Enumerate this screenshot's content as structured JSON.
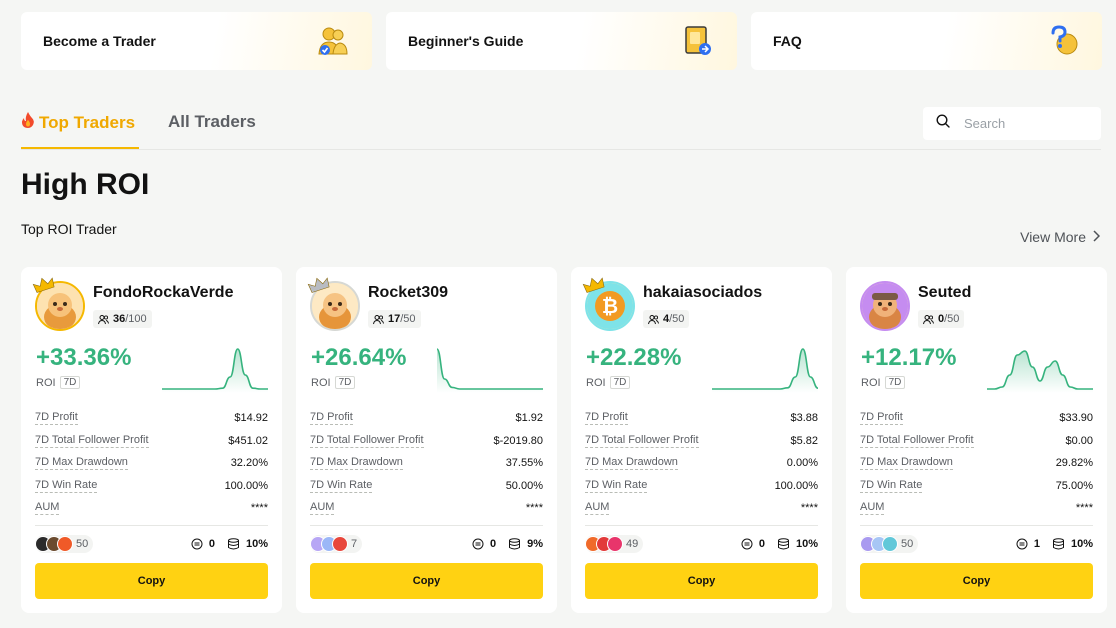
{
  "banners": [
    {
      "label": "Become a Trader",
      "icon": "trader-badge-icon"
    },
    {
      "label": "Beginner's Guide",
      "icon": "guide-book-icon"
    },
    {
      "label": "FAQ",
      "icon": "question-bulb-icon"
    }
  ],
  "tabs": {
    "top_traders": "Top Traders",
    "all_traders": "All Traders",
    "active_icon": "fire-icon"
  },
  "search": {
    "placeholder": "Search"
  },
  "section": {
    "title": "High ROI",
    "subtitle": "Top ROI Trader",
    "view_more": "View More"
  },
  "stat_labels": [
    "7D Profit",
    "7D Total Follower Profit",
    "7D Max Drawdown",
    "7D Win Rate",
    "AUM"
  ],
  "colors": {
    "accent": "#f5b800",
    "positive": "#36b37e",
    "button": "#ffd212"
  },
  "traders": [
    {
      "name": "FondoRockaVerde",
      "followers_current": "36",
      "followers_max": "/100",
      "roi": "+33.36%",
      "roi_label": "ROI",
      "roi_period": "7D",
      "stats": [
        "$14.92",
        "$451.02",
        "32.20%",
        "100.00%",
        "****"
      ],
      "copiers_count": "50",
      "comments": "0",
      "profit_share": "10%",
      "copy_label": "Copy",
      "crown": "gold",
      "sparkline": [
        0,
        0,
        0,
        0,
        0,
        0,
        0,
        0,
        0.02,
        0.3,
        1,
        0.35,
        0.02,
        0,
        0
      ]
    },
    {
      "name": "Rocket309",
      "followers_current": "17",
      "followers_max": "/50",
      "roi": "+26.64%",
      "roi_label": "ROI",
      "roi_period": "7D",
      "stats": [
        "$1.92",
        "$-2019.80",
        "37.55%",
        "50.00%",
        "****"
      ],
      "copiers_count": "7",
      "comments": "0",
      "profit_share": "9%",
      "copy_label": "Copy",
      "crown": "silver",
      "sparkline": [
        1,
        0.25,
        0.04,
        0,
        0,
        0,
        0,
        0,
        0,
        0,
        0,
        0,
        0,
        0,
        0
      ]
    },
    {
      "name": "hakaiasociados",
      "followers_current": "4",
      "followers_max": "/50",
      "roi": "+22.28%",
      "roi_label": "ROI",
      "roi_period": "7D",
      "stats": [
        "$3.88",
        "$5.82",
        "0.00%",
        "100.00%",
        "****"
      ],
      "copiers_count": "49",
      "comments": "0",
      "profit_share": "10%",
      "copy_label": "Copy",
      "crown": "gold",
      "sparkline": [
        0,
        0,
        0,
        0,
        0,
        0,
        0,
        0,
        0,
        0,
        0.03,
        0.3,
        1,
        0.3,
        0.02
      ]
    },
    {
      "name": "Seuted",
      "followers_current": "0",
      "followers_max": "/50",
      "roi": "+12.17%",
      "roi_label": "ROI",
      "roi_period": "7D",
      "stats": [
        "$33.90",
        "$0.00",
        "29.82%",
        "75.00%",
        "****"
      ],
      "copiers_count": "50",
      "comments": "1",
      "profit_share": "10%",
      "copy_label": "Copy",
      "crown": "none",
      "sparkline": [
        0,
        0,
        0.05,
        0.35,
        0.85,
        0.95,
        0.55,
        0.2,
        0.55,
        0.7,
        0.35,
        0.05,
        0,
        0,
        0
      ]
    }
  ]
}
